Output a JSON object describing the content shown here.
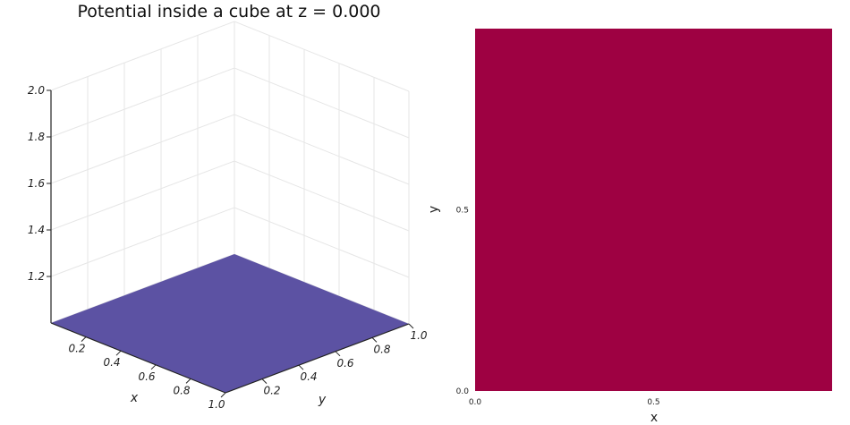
{
  "title": "Potential inside a cube at z = 0.000",
  "colors": {
    "surface": "#5c52a3",
    "heatmap": "#9e0142",
    "grid": "#e6e6e6",
    "axis": "#222222"
  },
  "chart_data": [
    {
      "type": "surface",
      "title": "Potential inside a cube at z = 0.000",
      "xlabel": "x",
      "ylabel": "y",
      "xlim": [
        0,
        1
      ],
      "ylim": [
        0,
        1
      ],
      "zlim": [
        1,
        2
      ],
      "x_ticks": [
        "0.2",
        "0.4",
        "0.6",
        "0.8",
        "1.0"
      ],
      "y_ticks": [
        "0.2",
        "0.4",
        "0.6",
        "0.8",
        "1.0"
      ],
      "z_ticks": [
        "1.2",
        "1.4",
        "1.6",
        "1.8",
        "2.0"
      ],
      "surface_value": 1.0,
      "grid": true
    },
    {
      "type": "heatmap",
      "xlabel": "x",
      "ylabel": "y",
      "xlim": [
        0,
        1
      ],
      "ylim": [
        0,
        1
      ],
      "x_ticks": [
        "0.0",
        "0.5"
      ],
      "y_ticks": [
        "0.0",
        "0.5"
      ],
      "uniform_value": 1.0,
      "grid": false
    }
  ]
}
